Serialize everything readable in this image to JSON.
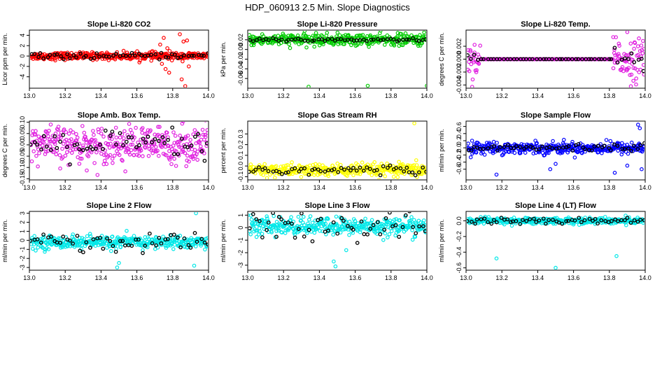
{
  "figure_title": "HDP_060913  2.5 Min. Slope Diagnostics",
  "chart_data": [
    {
      "id": "co2",
      "type": "scatter",
      "title": "Slope Li-820 CO2",
      "ylabel": "Licor ppm per min.",
      "xlim": [
        13.0,
        14.0
      ],
      "ylim": [
        -6.2,
        5.0
      ],
      "xticks": [
        13.0,
        13.2,
        13.4,
        13.6,
        13.8,
        14.0
      ],
      "xtick_labels": [
        "13.0",
        "13.2",
        "13.4",
        "13.6",
        "13.8",
        "14.0"
      ],
      "yticks": [
        -4,
        -2,
        0,
        2,
        4
      ],
      "ytick_labels": [
        "-4",
        "-2",
        "0",
        "2",
        "4"
      ],
      "color": "#ff0000",
      "center": 0,
      "spread": 0.35,
      "black_spread": 0.25,
      "outliers_x": [
        13.73,
        13.74,
        13.75,
        13.76,
        13.77,
        13.78,
        13.84,
        13.85,
        13.86,
        13.87,
        13.88,
        13.89
      ],
      "outliers_y": [
        2.2,
        -1.5,
        3.5,
        -2.5,
        1.5,
        -3.2,
        4.2,
        -4.5,
        2.8,
        -5.8,
        3.0,
        -2.0
      ]
    },
    {
      "id": "pressure",
      "type": "scatter",
      "title": "Slope Li-820 Pressure",
      "ylabel": "kPa per min.",
      "xlim": [
        13.0,
        14.0
      ],
      "ylim": [
        -0.08,
        0.04
      ],
      "xticks": [
        13.0,
        13.2,
        13.4,
        13.6,
        13.8,
        14.0
      ],
      "xtick_labels": [
        "13.0",
        "13.2",
        "13.4",
        "13.6",
        "13.8",
        "14.0"
      ],
      "yticks": [
        -0.06,
        -0.04,
        -0.02,
        0.0,
        0.02
      ],
      "ytick_labels": [
        "-0.06",
        "-0.04",
        "-0.02",
        "0.00",
        "0.02"
      ],
      "color": "#00cc00",
      "center": 0.02,
      "spread": 0.006,
      "black_spread": 0.002,
      "outliers_x": [
        13.34,
        13.67,
        14.0
      ],
      "outliers_y": [
        -0.077,
        -0.075,
        -0.075
      ]
    },
    {
      "id": "temp",
      "type": "scatter",
      "title": "Slope Li-820 Temp.",
      "ylabel": "degrees C per min.",
      "xlim": [
        13.0,
        14.0
      ],
      "ylim": [
        -0.0045,
        0.0045
      ],
      "xticks": [
        13.0,
        13.2,
        13.4,
        13.6,
        13.8,
        14.0
      ],
      "xtick_labels": [
        "13.0",
        "13.2",
        "13.4",
        "13.6",
        "13.8",
        "14.0"
      ],
      "yticks": [
        -0.004,
        -0.002,
        0.0,
        0.002
      ],
      "ytick_labels": [
        "-0.004",
        "-0.002",
        "0.000",
        "0.002"
      ],
      "color": "#e020e0",
      "center": 0.0,
      "spread": 0.0015,
      "black_spread": 0.0008,
      "outliers_x": [
        13.9,
        13.92
      ],
      "outliers_y": [
        0.0042,
        -0.0042
      ]
    },
    {
      "id": "ambbox",
      "type": "scatter",
      "title": "Slope Amb. Box Temp.",
      "ylabel": "degrees C per min.",
      "xlim": [
        13.0,
        14.0
      ],
      "ylim": [
        -0.155,
        0.105
      ],
      "xticks": [
        13.0,
        13.2,
        13.4,
        13.6,
        13.8,
        14.0
      ],
      "xtick_labels": [
        "13.0",
        "13.2",
        "13.4",
        "13.6",
        "13.8",
        "14.0"
      ],
      "yticks": [
        -0.15,
        -0.1,
        -0.05,
        0.0,
        0.05,
        0.1
      ],
      "ytick_labels": [
        "-0.15",
        "-0.10",
        "-0.05",
        "0.00",
        "0.05",
        "0.10"
      ],
      "color": "#e020e0",
      "center": 0.0,
      "spread": 0.04,
      "black_spread": 0.035,
      "outliers_x": [],
      "outliers_y": []
    },
    {
      "id": "rh",
      "type": "scatter",
      "title": "Slope Gas Stream RH",
      "ylabel": "percent per min.",
      "xlim": [
        13.0,
        14.0
      ],
      "ylim": [
        -0.13,
        0.42
      ],
      "xticks": [
        13.0,
        13.2,
        13.4,
        13.6,
        13.8,
        14.0
      ],
      "xtick_labels": [
        "13.0",
        "13.2",
        "13.4",
        "13.6",
        "13.8",
        "14.0"
      ],
      "yticks": [
        -0.1,
        0.0,
        0.1,
        0.2,
        0.3
      ],
      "ytick_labels": [
        "-0.1",
        "0.0",
        "0.1",
        "0.2",
        "0.3"
      ],
      "color": "#ffff00",
      "center": -0.04,
      "spread": 0.03,
      "black_spread": 0.025,
      "outliers_x": [
        13.93
      ],
      "outliers_y": [
        0.4
      ]
    },
    {
      "id": "sampleflow",
      "type": "scatter",
      "title": "Slope Sample Flow",
      "ylabel": "ml/min per min.",
      "xlim": [
        13.0,
        14.0
      ],
      "ylim": [
        -0.9,
        0.75
      ],
      "xticks": [
        13.0,
        13.2,
        13.4,
        13.6,
        13.8,
        14.0
      ],
      "xtick_labels": [
        "13.0",
        "13.2",
        "13.4",
        "13.6",
        "13.8",
        "14.0"
      ],
      "yticks": [
        -0.6,
        -0.4,
        -0.2,
        0.0,
        0.2,
        0.4,
        0.6
      ],
      "ytick_labels": [
        "-0.6",
        "-0.4",
        "-0.2",
        "0.0",
        "0.2",
        "0.4",
        "0.6"
      ],
      "color": "#0000ff",
      "center": 0.0,
      "spread": 0.08,
      "black_spread": 0.05,
      "outliers_x": [
        13.17,
        13.47,
        13.5,
        13.83,
        13.9,
        13.96,
        13.97,
        13.98
      ],
      "outliers_y": [
        -0.75,
        -0.6,
        -0.45,
        -0.7,
        -0.5,
        0.65,
        0.55,
        -0.6
      ]
    },
    {
      "id": "line2",
      "type": "scatter",
      "title": "Slope Line 2 Flow",
      "ylabel": "ml/min per min.",
      "xlim": [
        13.0,
        14.0
      ],
      "ylim": [
        -3.3,
        3.2
      ],
      "xticks": [
        13.0,
        13.2,
        13.4,
        13.6,
        13.8,
        14.0
      ],
      "xtick_labels": [
        "13.0",
        "13.2",
        "13.4",
        "13.6",
        "13.8",
        "14.0"
      ],
      "yticks": [
        -3,
        -2,
        -1,
        0,
        1,
        2,
        3
      ],
      "ytick_labels": [
        "-3",
        "-2",
        "-1",
        "0",
        "1",
        "2",
        "3"
      ],
      "color": "#00e8e8",
      "center": -0.2,
      "spread": 0.35,
      "black_spread": 0.55,
      "outliers_x": [
        13.49,
        13.5,
        13.93,
        13.92
      ],
      "outliers_y": [
        -3.0,
        -2.5,
        3.0,
        -2.8
      ]
    },
    {
      "id": "line3",
      "type": "scatter",
      "title": "Slope Line 3 Flow",
      "ylabel": "ml/min per min.",
      "xlim": [
        13.0,
        14.0
      ],
      "ylim": [
        -3.4,
        1.3
      ],
      "xticks": [
        13.0,
        13.2,
        13.4,
        13.6,
        13.8,
        14.0
      ],
      "xtick_labels": [
        "13.0",
        "13.2",
        "13.4",
        "13.6",
        "13.8",
        "14.0"
      ],
      "yticks": [
        -3,
        -2,
        -1,
        0,
        1
      ],
      "ytick_labels": [
        "-3",
        "-2",
        "-1",
        "0",
        "1"
      ],
      "color": "#00e8e8",
      "center": 0.1,
      "spread": 0.35,
      "black_spread": 0.65,
      "outliers_x": [
        13.49,
        13.48,
        13.55,
        13.0
      ],
      "outliers_y": [
        -3.1,
        -2.7,
        -1.8,
        1.0
      ]
    },
    {
      "id": "line4",
      "type": "scatter",
      "title": "Slope Line 4 (LT) Flow",
      "ylabel": "ml/min per min.",
      "xlim": [
        13.0,
        14.0
      ],
      "ylim": [
        -0.63,
        0.12
      ],
      "xticks": [
        13.0,
        13.2,
        13.4,
        13.6,
        13.8,
        14.0
      ],
      "xtick_labels": [
        "13.0",
        "13.2",
        "13.4",
        "13.6",
        "13.8",
        "14.0"
      ],
      "yticks": [
        -0.6,
        -0.4,
        -0.2,
        0.0
      ],
      "ytick_labels": [
        "-0.6",
        "-0.4",
        "-0.2",
        "0.0"
      ],
      "color": "#00e8e8",
      "center": 0.0,
      "spread": 0.02,
      "black_spread": 0.025,
      "outliers_x": [
        13.17,
        13.5,
        13.84
      ],
      "outliers_y": [
        -0.48,
        -0.6,
        -0.45
      ]
    }
  ]
}
